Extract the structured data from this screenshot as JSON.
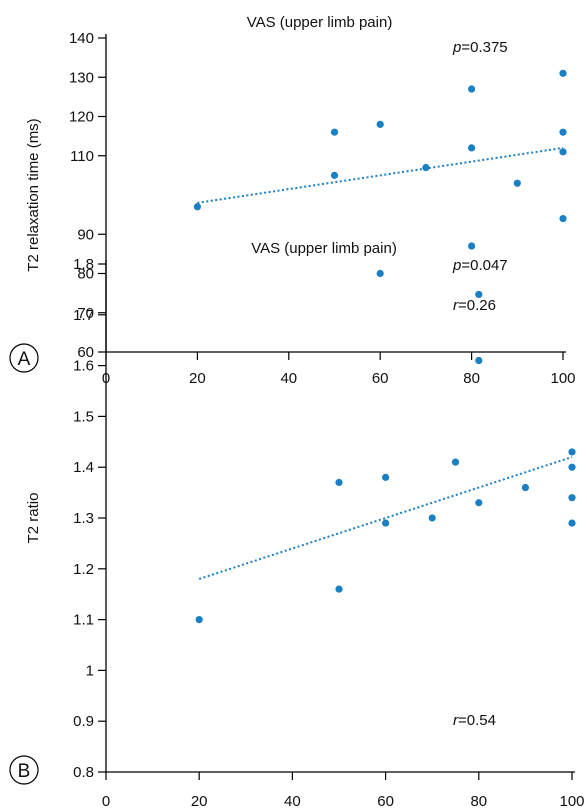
{
  "chart_data": [
    {
      "panel_label": "A",
      "type": "scatter",
      "title": "VAS (upper limb pain)",
      "xlabel": "",
      "ylabel": "T2 relaxation time (ms)",
      "xlim": [
        0,
        100
      ],
      "ylim": [
        60,
        140
      ],
      "x_ticks": [
        0,
        20,
        40,
        60,
        80,
        100
      ],
      "y_ticks": [
        60,
        70,
        80,
        90,
        110,
        120,
        130,
        140
      ],
      "x_tick_labels": [
        "0",
        "20",
        "40",
        "60",
        "80",
        "100"
      ],
      "y_tick_labels": [
        "60",
        "70",
        "80",
        "90",
        "110",
        "120",
        "130",
        "140"
      ],
      "stats": {
        "p_var": "p",
        "p_value": "=0.375",
        "r_var": "r",
        "r_value": "=0.26"
      },
      "points": [
        {
          "x": 20,
          "y": 97
        },
        {
          "x": 50,
          "y": 116
        },
        {
          "x": 50,
          "y": 105
        },
        {
          "x": 60,
          "y": 118
        },
        {
          "x": 60,
          "y": 80
        },
        {
          "x": 70,
          "y": 107
        },
        {
          "x": 80,
          "y": 127
        },
        {
          "x": 80,
          "y": 112
        },
        {
          "x": 80,
          "y": 87
        },
        {
          "x": 90,
          "y": 103
        },
        {
          "x": 100,
          "y": 131
        },
        {
          "x": 100,
          "y": 116
        },
        {
          "x": 100,
          "y": 111
        },
        {
          "x": 100,
          "y": 94
        }
      ],
      "trendline": {
        "x": [
          20,
          100
        ],
        "y": [
          98,
          112
        ]
      },
      "colors": {
        "points": "#1b7fc3",
        "trend": "#1b7fc3"
      }
    },
    {
      "panel_label": "B",
      "type": "scatter",
      "title": "VAS (upper limb pain)",
      "xlabel": "",
      "ylabel": "T2 ratio",
      "xlim": [
        0,
        100
      ],
      "ylim": [
        0.8,
        1.8
      ],
      "x_ticks": [
        0,
        20,
        40,
        60,
        80,
        100
      ],
      "y_ticks": [
        0.8,
        0.9,
        1,
        1.1,
        1.2,
        1.3,
        1.4,
        1.5,
        1.6,
        1.7,
        1.8
      ],
      "x_tick_labels": [
        "0",
        "20",
        "40",
        "60",
        "80",
        "100"
      ],
      "y_tick_labels": [
        "0.8",
        "0.9",
        "1",
        "1.1",
        "1.2",
        "1.3",
        "1.4",
        "1.5",
        "1.6",
        "1.7",
        "1.8"
      ],
      "stats": {
        "p_var": "p",
        "p_value": "=0.047",
        "r_var": "r",
        "r_value": "=0.54"
      },
      "points": [
        {
          "x": 20,
          "y": 1.1
        },
        {
          "x": 50,
          "y": 1.37
        },
        {
          "x": 50,
          "y": 1.16
        },
        {
          "x": 60,
          "y": 1.38
        },
        {
          "x": 60,
          "y": 1.29
        },
        {
          "x": 70,
          "y": 1.3
        },
        {
          "x": 75,
          "y": 1.41
        },
        {
          "x": 80,
          "y": 1.74
        },
        {
          "x": 80,
          "y": 1.61
        },
        {
          "x": 80,
          "y": 1.33
        },
        {
          "x": 90,
          "y": 1.36
        },
        {
          "x": 100,
          "y": 1.43
        },
        {
          "x": 100,
          "y": 1.4
        },
        {
          "x": 100,
          "y": 1.34
        },
        {
          "x": 100,
          "y": 1.29
        }
      ],
      "trendline": {
        "x": [
          20,
          100
        ],
        "y": [
          1.18,
          1.42
        ]
      },
      "colors": {
        "points": "#1b7fc3",
        "trend": "#1b7fc3"
      }
    }
  ]
}
